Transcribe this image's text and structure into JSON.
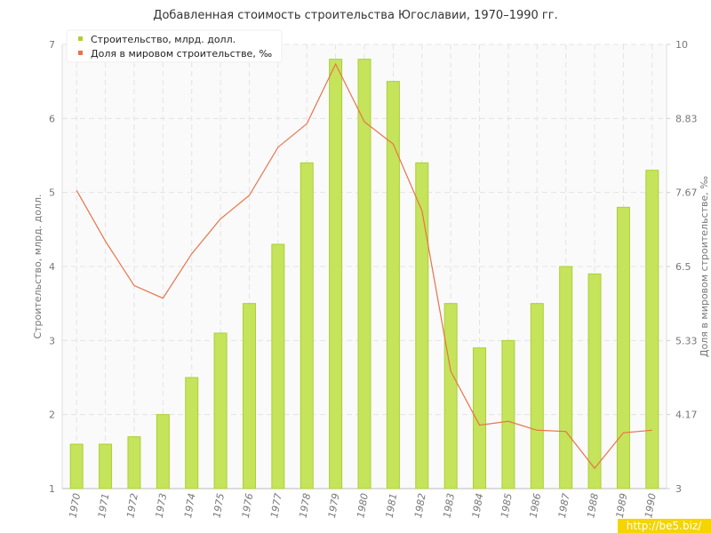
{
  "chart_data": {
    "type": "bar_line",
    "title": "Добавленная стоимость строительства Югославии, 1970–1990 гг.",
    "y_label": "Строительство, млрд. долл.",
    "y2_label": "Доля в мировом строительстве, ‰",
    "watermark": "http://be5.biz/",
    "categories": [
      "1970",
      "1971",
      "1972",
      "1973",
      "1974",
      "1975",
      "1976",
      "1977",
      "1978",
      "1979",
      "1980",
      "1981",
      "1982",
      "1983",
      "1984",
      "1985",
      "1986",
      "1987",
      "1988",
      "1989",
      "1990"
    ],
    "series": [
      {
        "name": "Строительство, млрд. долл.",
        "type": "bar",
        "color": "#c6e35c",
        "values": [
          1.6,
          1.6,
          1.7,
          2.0,
          2.5,
          3.1,
          3.5,
          4.3,
          5.4,
          6.8,
          6.8,
          6.5,
          5.4,
          3.5,
          2.9,
          3.0,
          3.5,
          4.0,
          3.9,
          4.8,
          5.3
        ]
      },
      {
        "name": "Доля в мировом строительстве, ‰",
        "type": "line",
        "axis": "y2",
        "color": "#e8734a",
        "values": [
          7.7,
          6.9,
          6.2,
          6.0,
          6.7,
          7.25,
          7.62,
          8.38,
          8.75,
          9.69,
          8.78,
          8.43,
          7.38,
          4.85,
          4.0,
          4.06,
          3.92,
          3.9,
          3.32,
          3.88,
          3.92
        ]
      }
    ],
    "ylim": [
      1,
      7
    ],
    "yticks": [
      1,
      2,
      3,
      4,
      5,
      6,
      7
    ],
    "y2lim": [
      3,
      10
    ],
    "y2ticks": [
      3,
      {
        "value": 4.1667,
        "label": "4.17"
      },
      {
        "value": 5.3333,
        "label": "5.33"
      },
      6.5,
      {
        "value": 7.6667,
        "label": "7.67"
      },
      {
        "value": 8.8333,
        "label": "8.83"
      },
      10
    ],
    "grid": true,
    "legend": "top-left"
  }
}
